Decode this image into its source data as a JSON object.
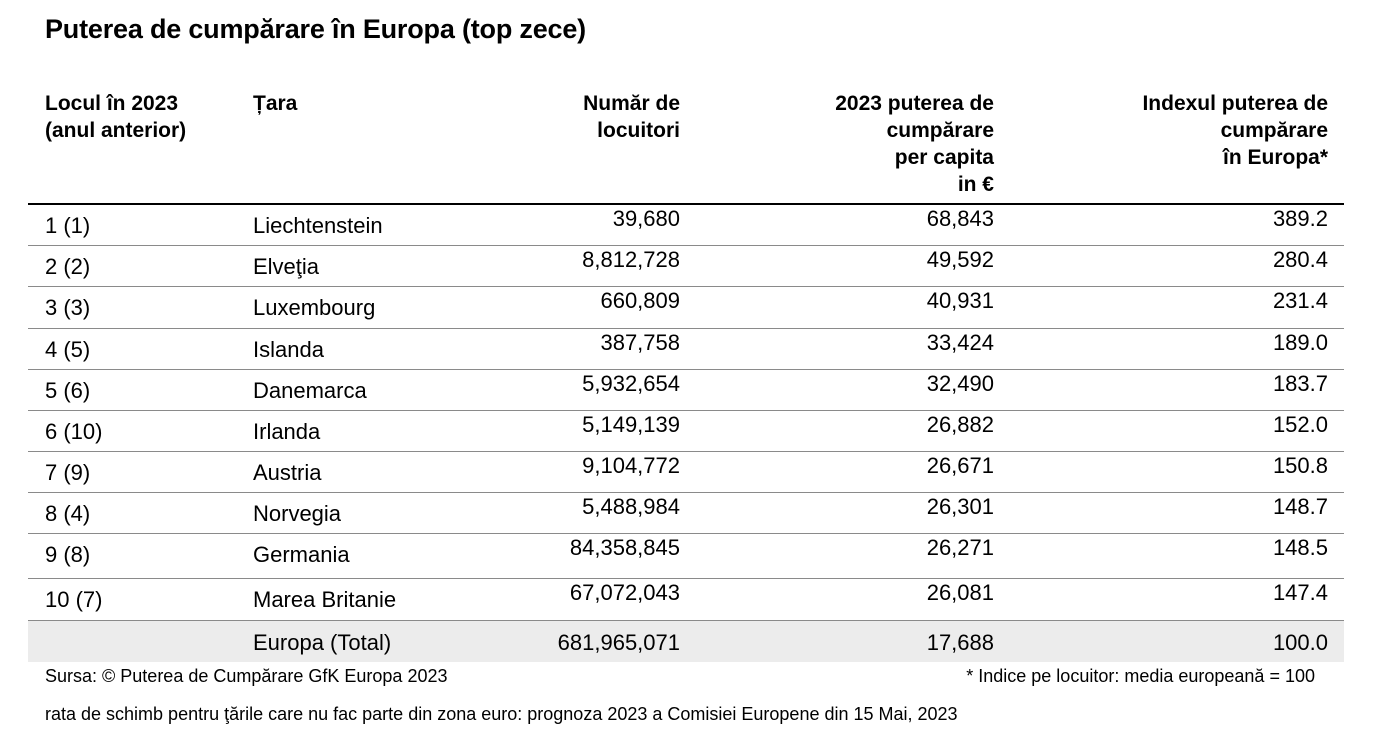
{
  "title": "Puterea de cumpărare în Europa (top zece)",
  "headers": {
    "rank": [
      "Locul în 2023",
      "(anul anterior)"
    ],
    "country": [
      "Țara"
    ],
    "population": [
      "Număr de",
      "locuitori"
    ],
    "per_capita": [
      "2023 puterea de",
      "cumpărare",
      "per capita",
      "in €"
    ],
    "index": [
      "Indexul puterea de",
      "cumpărare",
      "în Europa*"
    ]
  },
  "chart_data": {
    "type": "table",
    "columns": [
      "Locul în 2023 (anul anterior)",
      "Țara",
      "Număr de locuitori",
      "2023 puterea de cumpărare per capita in €",
      "Indexul puterea de cumpărare în Europa*"
    ],
    "rows": [
      {
        "rank": "1 (1)",
        "country": "Liechtenstein",
        "population": "39,680",
        "per_capita": "68,843",
        "index": "389.2"
      },
      {
        "rank": "2 (2)",
        "country": "Elveţia",
        "population": "8,812,728",
        "per_capita": "49,592",
        "index": "280.4"
      },
      {
        "rank": "3 (3)",
        "country": "Luxembourg",
        "population": "660,809",
        "per_capita": "40,931",
        "index": "231.4"
      },
      {
        "rank": "4 (5)",
        "country": "Islanda",
        "population": "387,758",
        "per_capita": "33,424",
        "index": "189.0"
      },
      {
        "rank": "5 (6)",
        "country": "Danemarca",
        "population": "5,932,654",
        "per_capita": "32,490",
        "index": "183.7"
      },
      {
        "rank": "6 (10)",
        "country": "Irlanda",
        "population": "5,149,139",
        "per_capita": "26,882",
        "index": "152.0"
      },
      {
        "rank": "7 (9)",
        "country": "Austria",
        "population": "9,104,772",
        "per_capita": "26,671",
        "index": "150.8"
      },
      {
        "rank": "8 (4)",
        "country": "Norvegia",
        "population": "5,488,984",
        "per_capita": "26,301",
        "index": "148.7"
      },
      {
        "rank": "9 (8)",
        "country": "Germania",
        "population": "84,358,845",
        "per_capita": "26,271",
        "index": "148.5"
      },
      {
        "rank": "10 (7)",
        "country": "Marea Britanie",
        "population": "67,072,043",
        "per_capita": "26,081",
        "index": "147.4"
      }
    ],
    "total": {
      "rank": "",
      "country": "Europa (Total)",
      "population": "681,965,071",
      "per_capita": "17,688",
      "index": "100.0"
    }
  },
  "notes": {
    "source": "Sursa: © Puterea  de Cumpărare GfK Europa 2023",
    "index_note": "* Indice pe locuitor: media europeană = 100",
    "exchange": "rata de schimb pentru ţările care nu fac parte din zona euro: prognoza 2023 a  Comisiei Europene din 15 Mai, 2023"
  },
  "colors": {
    "total_row_bg": "#ececec",
    "rule": "#000000",
    "row_rule": "#8a8a8a"
  }
}
